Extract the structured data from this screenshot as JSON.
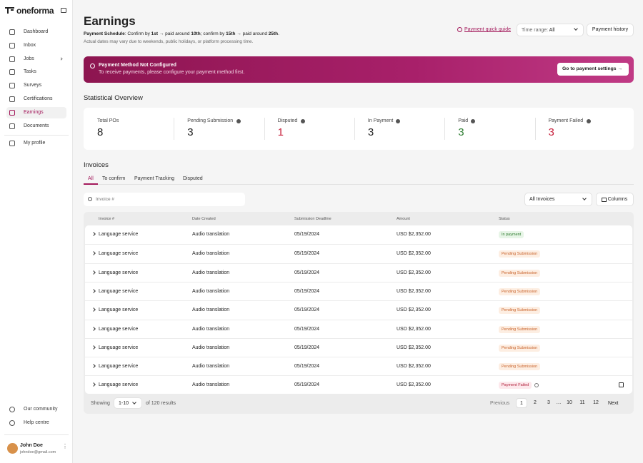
{
  "sidebar": {
    "logo": "oneforma",
    "nav": [
      "Dashboard",
      "Inbox",
      "Jobs",
      "Tasks",
      "Surveys",
      "Certifications",
      "Earnings",
      "Documents"
    ],
    "profile": "My profile",
    "footer_links": [
      "Our community",
      "Help centre"
    ],
    "user": {
      "name": "John Doe",
      "email": "johndoe@gmail.com"
    }
  },
  "header": {
    "title": "Earnings",
    "schedule": [
      "Payment Schedule",
      ": Confirm by ",
      "1st",
      " → paid around ",
      "10th",
      "; confirm by ",
      "15th",
      " → paid around ",
      "25th",
      "."
    ],
    "note": "Actual dates may vary due to weekends, public holidays, or platform processing time.",
    "guide_link": "Payment quick guide",
    "time_range": {
      "label": "Time range:",
      "value": "All"
    },
    "history_button": "Payment history"
  },
  "banner": {
    "title": "Payment Method Not Configured",
    "message": "To receive payments, please configure your payment method first.",
    "button": "Go to payment settings"
  },
  "overview": {
    "title": "Statistical Overview",
    "stats": [
      {
        "label": "Total POs",
        "value": 8
      },
      {
        "label": "Pending Submission",
        "value": 3
      },
      {
        "label": "Disputed",
        "value": 1
      },
      {
        "label": "In Payment",
        "value": 3
      },
      {
        "label": "Paid",
        "value": 3
      },
      {
        "label": "Payment Failed",
        "value": 3
      }
    ]
  },
  "invoices": {
    "title": "Invoices",
    "tabs": [
      "All",
      "To confirm",
      "Payment Tracking",
      "Disputed"
    ],
    "search_placeholder": "Invoice #",
    "filter": "All Invoices",
    "columns_button": "Columns",
    "headers": [
      "Invoice #",
      "Date Created",
      "Submission Deadline",
      "Amount",
      "Status"
    ],
    "rows": [
      [
        "Language service",
        "Audio translation",
        "05/19/2024",
        "USD $2,352.00",
        "In payment"
      ],
      [
        "Language service",
        "Audio translation",
        "05/19/2024",
        "USD $2,352.00",
        "Pending Submission"
      ],
      [
        "Language service",
        "Audio translation",
        "05/19/2024",
        "USD $2,352.00",
        "Pending Submission"
      ],
      [
        "Language service",
        "Audio translation",
        "05/19/2024",
        "USD $2,352.00",
        "Pending Submission"
      ],
      [
        "Language service",
        "Audio translation",
        "05/19/2024",
        "USD $2,352.00",
        "Pending Submission"
      ],
      [
        "Language service",
        "Audio translation",
        "05/19/2024",
        "USD $2,352.00",
        "Pending Submission"
      ],
      [
        "Language service",
        "Audio translation",
        "05/19/2024",
        "USD $2,352.00",
        "Pending Submission"
      ],
      [
        "Language service",
        "Audio translation",
        "05/19/2024",
        "USD $2,352.00",
        "Pending Submission"
      ],
      [
        "Language service",
        "Audio translation",
        "05/19/2024",
        "USD $2,352.00",
        "Payment Failed"
      ]
    ],
    "footer": {
      "showing": "Showing",
      "page_size": "1-10",
      "total": "of 120 results",
      "previous": "Previous",
      "pages": [
        "1",
        "2",
        "3",
        "…",
        "10",
        "11",
        "12"
      ],
      "next": "Next"
    }
  }
}
